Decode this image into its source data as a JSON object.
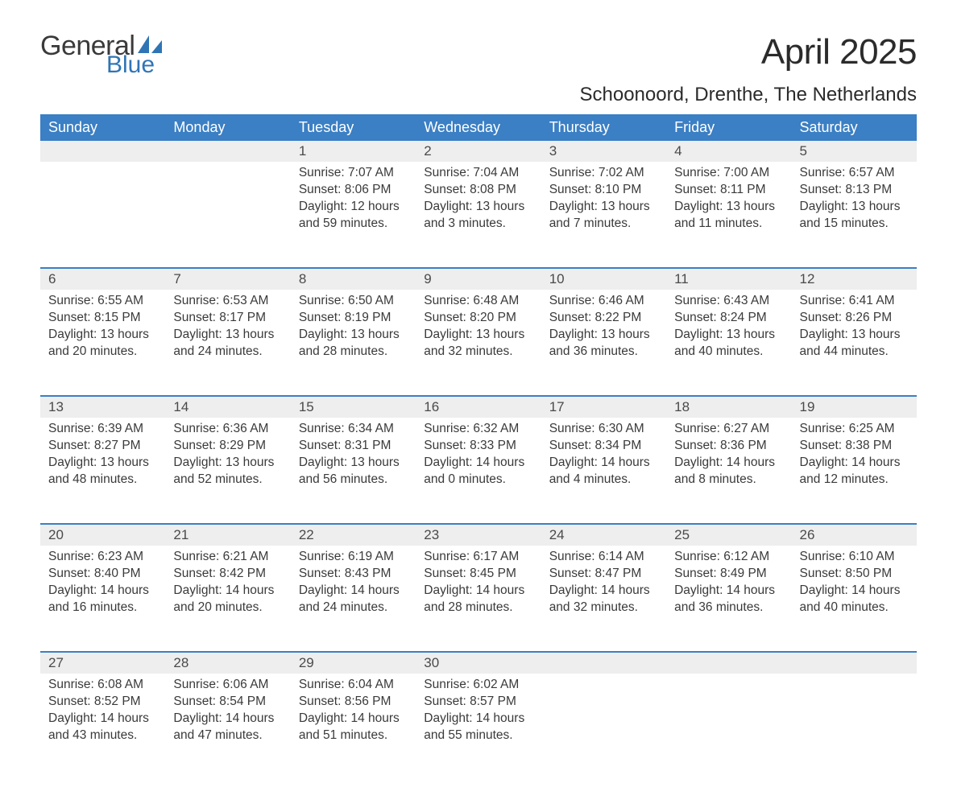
{
  "brand": {
    "part1": "General",
    "part2": "Blue",
    "logo_color": "#2f75b5"
  },
  "title": "April 2025",
  "location": "Schoonoord, Drenthe, The Netherlands",
  "colors": {
    "header_bg": "#3b7fc4",
    "header_text": "#ffffff",
    "daynum_bg": "#eeeeee",
    "row_divider": "#3b7fc4",
    "body_text": "#3a3a3a"
  },
  "font": {
    "title_size": 44,
    "location_size": 24,
    "dayheader_size": 18,
    "cell_size": 15.5
  },
  "day_names": [
    "Sunday",
    "Monday",
    "Tuesday",
    "Wednesday",
    "Thursday",
    "Friday",
    "Saturday"
  ],
  "weeks": [
    [
      null,
      null,
      {
        "n": "1",
        "sunrise": "7:07 AM",
        "sunset": "8:06 PM",
        "daylight": "12 hours and 59 minutes."
      },
      {
        "n": "2",
        "sunrise": "7:04 AM",
        "sunset": "8:08 PM",
        "daylight": "13 hours and 3 minutes."
      },
      {
        "n": "3",
        "sunrise": "7:02 AM",
        "sunset": "8:10 PM",
        "daylight": "13 hours and 7 minutes."
      },
      {
        "n": "4",
        "sunrise": "7:00 AM",
        "sunset": "8:11 PM",
        "daylight": "13 hours and 11 minutes."
      },
      {
        "n": "5",
        "sunrise": "6:57 AM",
        "sunset": "8:13 PM",
        "daylight": "13 hours and 15 minutes."
      }
    ],
    [
      {
        "n": "6",
        "sunrise": "6:55 AM",
        "sunset": "8:15 PM",
        "daylight": "13 hours and 20 minutes."
      },
      {
        "n": "7",
        "sunrise": "6:53 AM",
        "sunset": "8:17 PM",
        "daylight": "13 hours and 24 minutes."
      },
      {
        "n": "8",
        "sunrise": "6:50 AM",
        "sunset": "8:19 PM",
        "daylight": "13 hours and 28 minutes."
      },
      {
        "n": "9",
        "sunrise": "6:48 AM",
        "sunset": "8:20 PM",
        "daylight": "13 hours and 32 minutes."
      },
      {
        "n": "10",
        "sunrise": "6:46 AM",
        "sunset": "8:22 PM",
        "daylight": "13 hours and 36 minutes."
      },
      {
        "n": "11",
        "sunrise": "6:43 AM",
        "sunset": "8:24 PM",
        "daylight": "13 hours and 40 minutes."
      },
      {
        "n": "12",
        "sunrise": "6:41 AM",
        "sunset": "8:26 PM",
        "daylight": "13 hours and 44 minutes."
      }
    ],
    [
      {
        "n": "13",
        "sunrise": "6:39 AM",
        "sunset": "8:27 PM",
        "daylight": "13 hours and 48 minutes."
      },
      {
        "n": "14",
        "sunrise": "6:36 AM",
        "sunset": "8:29 PM",
        "daylight": "13 hours and 52 minutes."
      },
      {
        "n": "15",
        "sunrise": "6:34 AM",
        "sunset": "8:31 PM",
        "daylight": "13 hours and 56 minutes."
      },
      {
        "n": "16",
        "sunrise": "6:32 AM",
        "sunset": "8:33 PM",
        "daylight": "14 hours and 0 minutes."
      },
      {
        "n": "17",
        "sunrise": "6:30 AM",
        "sunset": "8:34 PM",
        "daylight": "14 hours and 4 minutes."
      },
      {
        "n": "18",
        "sunrise": "6:27 AM",
        "sunset": "8:36 PM",
        "daylight": "14 hours and 8 minutes."
      },
      {
        "n": "19",
        "sunrise": "6:25 AM",
        "sunset": "8:38 PM",
        "daylight": "14 hours and 12 minutes."
      }
    ],
    [
      {
        "n": "20",
        "sunrise": "6:23 AM",
        "sunset": "8:40 PM",
        "daylight": "14 hours and 16 minutes."
      },
      {
        "n": "21",
        "sunrise": "6:21 AM",
        "sunset": "8:42 PM",
        "daylight": "14 hours and 20 minutes."
      },
      {
        "n": "22",
        "sunrise": "6:19 AM",
        "sunset": "8:43 PM",
        "daylight": "14 hours and 24 minutes."
      },
      {
        "n": "23",
        "sunrise": "6:17 AM",
        "sunset": "8:45 PM",
        "daylight": "14 hours and 28 minutes."
      },
      {
        "n": "24",
        "sunrise": "6:14 AM",
        "sunset": "8:47 PM",
        "daylight": "14 hours and 32 minutes."
      },
      {
        "n": "25",
        "sunrise": "6:12 AM",
        "sunset": "8:49 PM",
        "daylight": "14 hours and 36 minutes."
      },
      {
        "n": "26",
        "sunrise": "6:10 AM",
        "sunset": "8:50 PM",
        "daylight": "14 hours and 40 minutes."
      }
    ],
    [
      {
        "n": "27",
        "sunrise": "6:08 AM",
        "sunset": "8:52 PM",
        "daylight": "14 hours and 43 minutes."
      },
      {
        "n": "28",
        "sunrise": "6:06 AM",
        "sunset": "8:54 PM",
        "daylight": "14 hours and 47 minutes."
      },
      {
        "n": "29",
        "sunrise": "6:04 AM",
        "sunset": "8:56 PM",
        "daylight": "14 hours and 51 minutes."
      },
      {
        "n": "30",
        "sunrise": "6:02 AM",
        "sunset": "8:57 PM",
        "daylight": "14 hours and 55 minutes."
      },
      null,
      null,
      null
    ]
  ],
  "labels": {
    "sunrise": "Sunrise: ",
    "sunset": "Sunset: ",
    "daylight": "Daylight: "
  }
}
